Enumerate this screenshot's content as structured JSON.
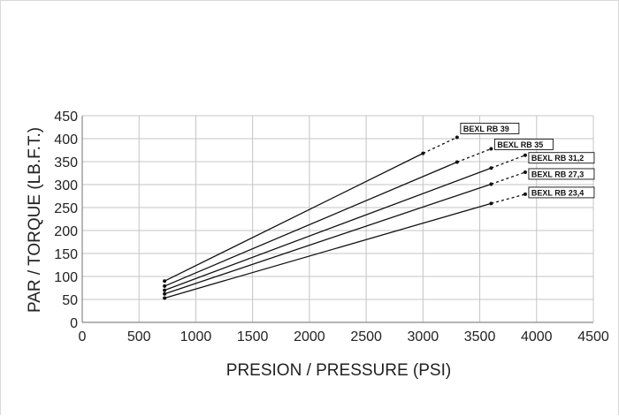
{
  "chart_data": {
    "type": "line",
    "title": "",
    "xlabel": "PRESION / PRESSURE (PSI)",
    "ylabel": "PAR / TORQUE (LB.F.T.)",
    "xlim": [
      0,
      4500
    ],
    "ylim": [
      0,
      450
    ],
    "x_ticks": [
      0,
      500,
      1000,
      1500,
      2000,
      2500,
      3000,
      3500,
      4000,
      4500
    ],
    "y_ticks": [
      0,
      50,
      100,
      150,
      200,
      250,
      300,
      350,
      400,
      450
    ],
    "grid": true,
    "legend": "inline labels at line ends",
    "series": [
      {
        "name": "BEXL RB 39",
        "solid": [
          [
            725,
            90
          ],
          [
            3000,
            368
          ]
        ],
        "dashed": [
          [
            3000,
            368
          ],
          [
            3300,
            403
          ]
        ]
      },
      {
        "name": "BEXL RB 35",
        "solid": [
          [
            725,
            79
          ],
          [
            3300,
            349
          ]
        ],
        "dashed": [
          [
            3300,
            349
          ],
          [
            3600,
            378
          ]
        ]
      },
      {
        "name": "BEXL RB 31,2",
        "solid": [
          [
            725,
            70
          ],
          [
            3600,
            336
          ]
        ],
        "dashed": [
          [
            3600,
            336
          ],
          [
            3900,
            364
          ]
        ]
      },
      {
        "name": "BEXL RB 27,3",
        "solid": [
          [
            725,
            62
          ],
          [
            3600,
            301
          ]
        ],
        "dashed": [
          [
            3600,
            301
          ],
          [
            3900,
            327
          ]
        ]
      },
      {
        "name": "BEXL RB 23,4",
        "solid": [
          [
            725,
            53
          ],
          [
            3600,
            259
          ]
        ],
        "dashed": [
          [
            3600,
            259
          ],
          [
            3900,
            279
          ]
        ]
      }
    ],
    "colors": {
      "line": "#111111",
      "grid": "#c4c4c4",
      "axis": "#888888"
    }
  }
}
